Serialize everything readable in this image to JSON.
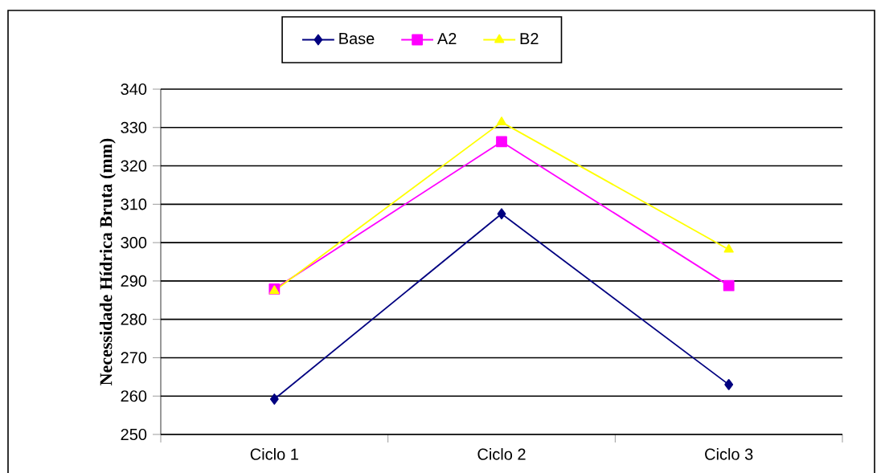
{
  "chart_data": {
    "type": "line",
    "ylabel": "Necessidade Hídrica Bruta (mm)",
    "categories": [
      "Ciclo 1",
      "Ciclo 2",
      "Ciclo 3"
    ],
    "series": [
      {
        "name": "Base",
        "color": "#000080",
        "marker": "diamond",
        "values": [
          259.2,
          307.5,
          263.0
        ]
      },
      {
        "name": "A2",
        "color": "#ff00ff",
        "marker": "square",
        "values": [
          287.9,
          326.3,
          288.8
        ]
      },
      {
        "name": "B2",
        "color": "#ffff00",
        "marker": "triangle",
        "values": [
          287.4,
          331.4,
          298.2
        ]
      }
    ],
    "ylim": [
      250,
      340
    ],
    "yticks": [
      250,
      260,
      270,
      280,
      290,
      300,
      310,
      320,
      330,
      340
    ],
    "grid": "y",
    "legend": "top"
  }
}
